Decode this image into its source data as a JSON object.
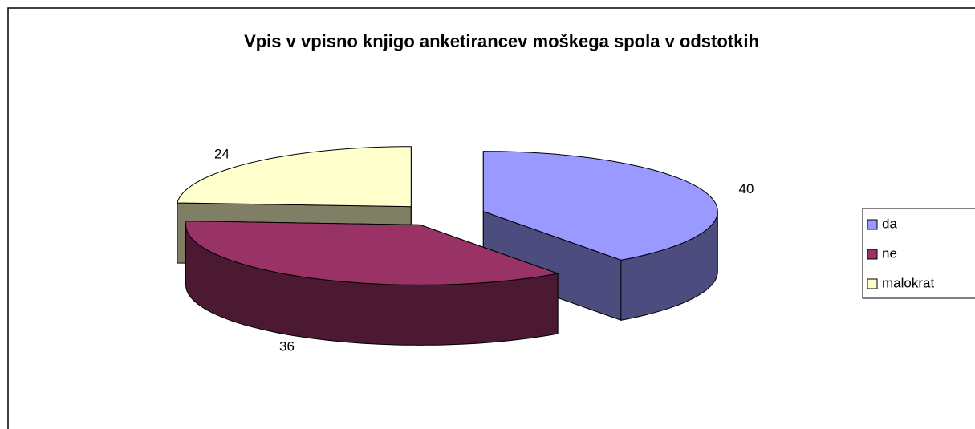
{
  "chart_data": {
    "type": "pie3d",
    "title": "Vpis v vpisno knjigo anketirancev moškega spola v odstotkih",
    "categories": [
      "da",
      "ne",
      "malokrat"
    ],
    "values": [
      40,
      36,
      24
    ],
    "colors": [
      "#9999ff",
      "#993366",
      "#ffffcc"
    ],
    "legend": "right"
  }
}
